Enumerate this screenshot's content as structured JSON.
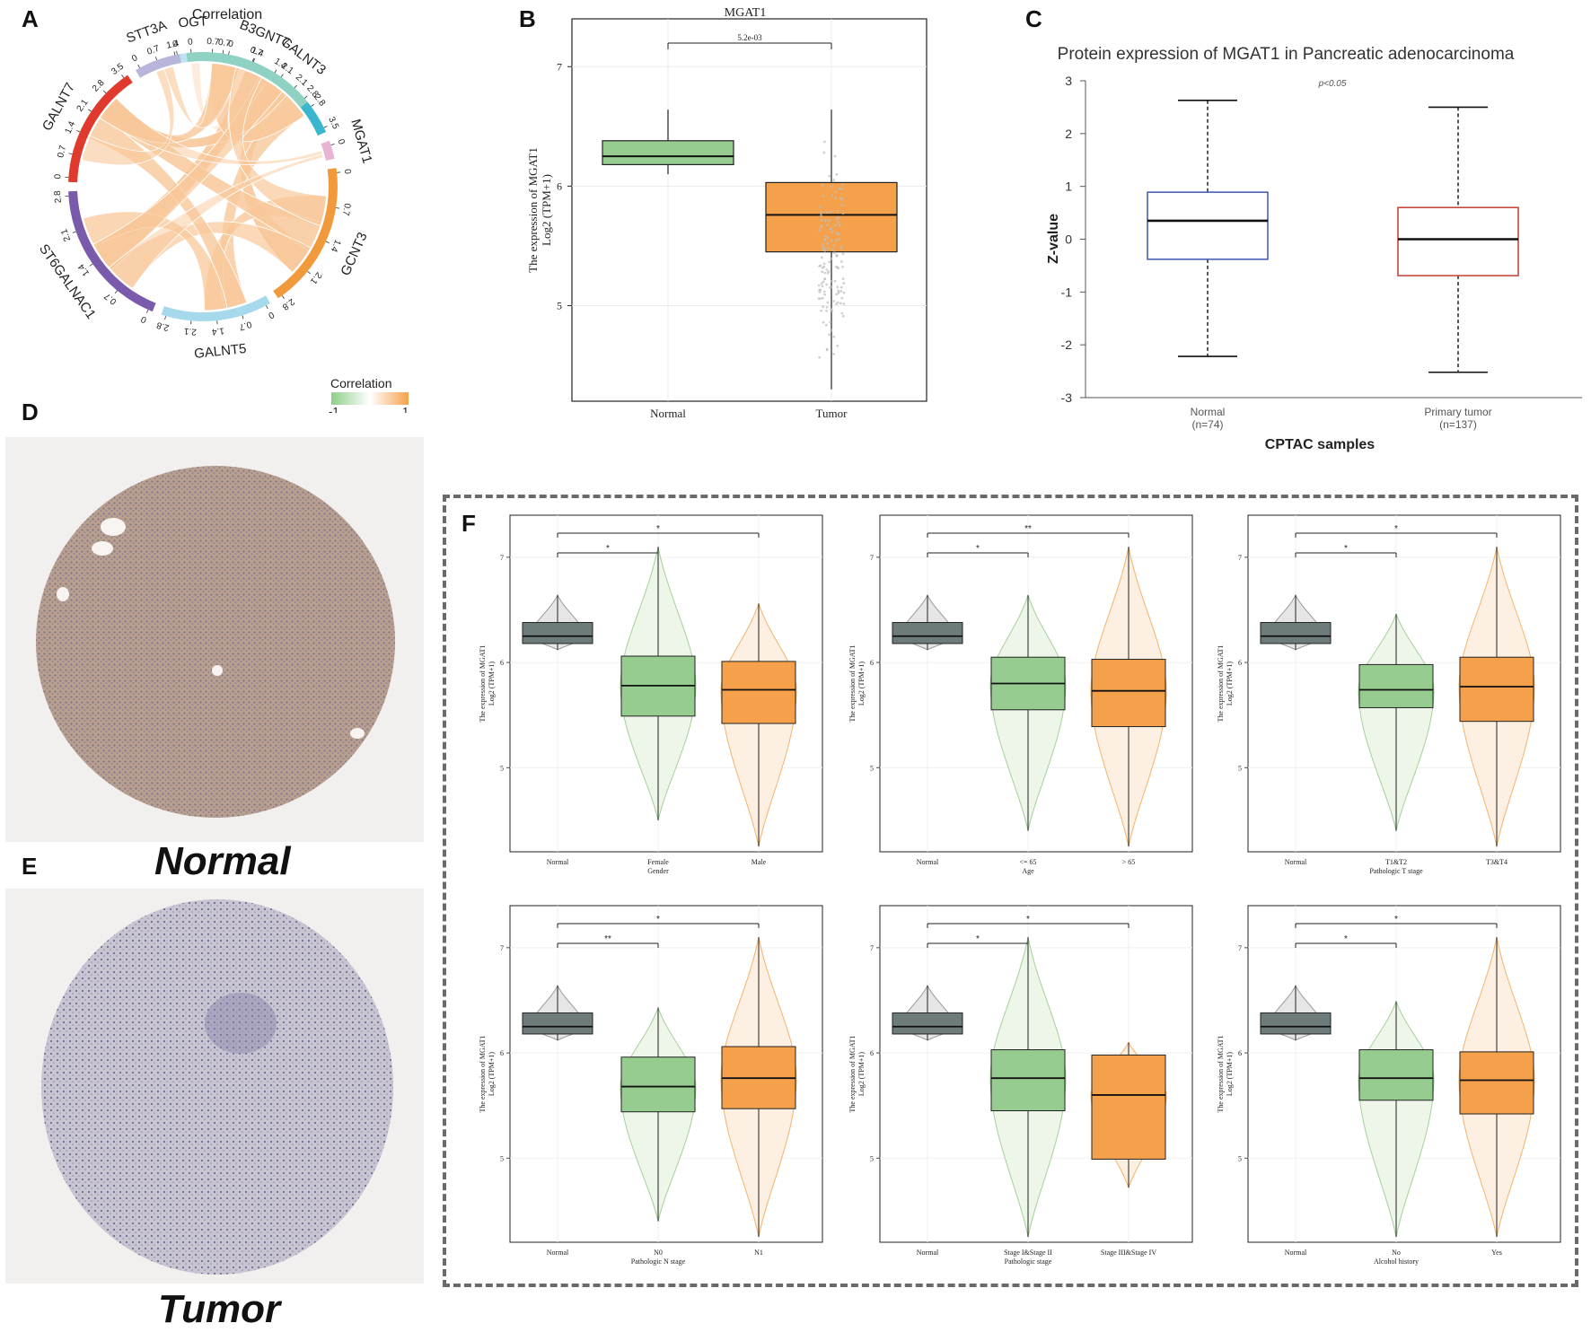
{
  "panels": {
    "A": "A",
    "B": "B",
    "C": "C",
    "D": "D",
    "E": "E",
    "F": "F"
  },
  "colors": {
    "normal_green": "#96cc8f",
    "tumor_orange": "#f5a14b",
    "normal_gray": "#6e7b7b",
    "c_normal_blue": "#4a5fb5",
    "c_tumor_red": "#c8473f",
    "chord": "#f8c89a",
    "frame_dash": "#6a6a6a"
  },
  "panelA": {
    "title": "Correlation",
    "legend_title": "Correlation",
    "legend_min": "-1",
    "legend_max": "1",
    "segments": [
      {
        "name": "OGT",
        "color": "#bfe1f2",
        "ticks": [
          "0",
          "0.7"
        ]
      },
      {
        "name": "GALNT3",
        "color": "#3bb6cf",
        "ticks": [
          "0",
          "0.7",
          "1.4",
          "2.1",
          "2.8",
          "3.5"
        ]
      },
      {
        "name": "MGAT1",
        "color": "#e7b5d3",
        "ticks": [
          "0"
        ]
      },
      {
        "name": "GCNT3",
        "color": "#f19a3c",
        "ticks": [
          "0",
          "0.7",
          "1.4",
          "2.1",
          "2.8"
        ]
      },
      {
        "name": "GALNT5",
        "color": "#a7d9ec",
        "ticks": [
          "0",
          "0.7",
          "1.4",
          "2.1",
          "2.8"
        ]
      },
      {
        "name": "ST6GALNAC1",
        "color": "#7a5bab",
        "ticks": [
          "0",
          "0.7",
          "1.4",
          "2.1",
          "2.8"
        ]
      },
      {
        "name": "GALNT7",
        "color": "#e03a2f",
        "ticks": [
          "0",
          "0.7",
          "1.4",
          "2.1",
          "2.8",
          "3.5"
        ]
      },
      {
        "name": "STT3A",
        "color": "#b7b6da",
        "ticks": [
          "0",
          "0.7",
          "1.4"
        ]
      },
      {
        "name": "B3GNT7",
        "color": "#8fd1c2",
        "ticks": [
          "0",
          "0.7",
          "1.4",
          "2.1",
          "2.8"
        ]
      }
    ]
  },
  "panelB": {
    "title": "MGAT1",
    "ylabel_line1": "The expression  of MGAT1",
    "ylabel_line2": "Log2 (TPM+1)",
    "pvalue": "5.2e-03",
    "yticks": [
      "5",
      "6",
      "7"
    ]
  },
  "panelC": {
    "title": "Protein expression of MGAT1 in Pancreatic adenocarcinoma",
    "pnote": "p<0.05",
    "ylabel": "Z-value",
    "xlabel": "CPTAC samples",
    "yticks": [
      "3",
      "2",
      "1",
      "0",
      "-1",
      "-2",
      "-3"
    ]
  },
  "panelD": {
    "label": "Normal"
  },
  "panelE": {
    "label": "Tumor"
  },
  "panelF": {
    "ylabel_line1": "The expression  of MGAT1",
    "ylabel_line2": "Log2 (TPM+1)",
    "yticks": [
      "5",
      "6",
      "7"
    ],
    "subplots": [
      {
        "xlabel": "Gender",
        "groups": [
          "Normal",
          "Female",
          "Male"
        ],
        "sig_short": "*",
        "sig_long": "*"
      },
      {
        "xlabel": "Age",
        "groups": [
          "Normal",
          "<= 65",
          "> 65"
        ],
        "sig_short": "*",
        "sig_long": "**"
      },
      {
        "xlabel": "Pathologic T stage",
        "groups": [
          "Normal",
          "T1&T2",
          "T3&T4"
        ],
        "sig_short": "*",
        "sig_long": "*"
      },
      {
        "xlabel": "Pathologic N stage",
        "groups": [
          "Normal",
          "N0",
          "N1"
        ],
        "sig_short": "**",
        "sig_long": "*"
      },
      {
        "xlabel": "Pathologic stage",
        "groups": [
          "Normal",
          "Stage I&Stage II",
          "Stage III&Stage IV"
        ],
        "sig_short": "*",
        "sig_long": "*"
      },
      {
        "xlabel": "Alcohol history",
        "groups": [
          "Normal",
          "No",
          "Yes"
        ],
        "sig_short": "*",
        "sig_long": "*"
      }
    ]
  },
  "chart_data": [
    {
      "type": "box",
      "panel": "B",
      "title": "MGAT1",
      "categories": [
        "Normal",
        "Tumor"
      ],
      "ylim": [
        4.2,
        7.4
      ],
      "series": [
        {
          "name": "Normal",
          "min": 6.1,
          "q1": 6.18,
          "median": 6.25,
          "q3": 6.38,
          "max": 6.64
        },
        {
          "name": "Tumor",
          "min": 4.3,
          "q1": 5.45,
          "median": 5.76,
          "q3": 6.03,
          "max": 6.64
        }
      ],
      "annotation": "5.2e-03"
    },
    {
      "type": "box",
      "panel": "C",
      "title": "Protein expression of MGAT1 in Pancreatic adenocarcinoma",
      "categories": [
        "Normal",
        "Primary tumor"
      ],
      "counts": [
        "(n=74)",
        "(n=137)"
      ],
      "ylim": [
        -3,
        3
      ],
      "series": [
        {
          "name": "Normal",
          "min": -2.22,
          "q1": -0.38,
          "median": 0.35,
          "q3": 0.89,
          "max": 2.63
        },
        {
          "name": "Primary tumor",
          "min": -2.52,
          "q1": -0.69,
          "median": 0.0,
          "q3": 0.6,
          "max": 2.5
        }
      ],
      "xlabel": "CPTAC samples",
      "ylabel": "Z-value"
    },
    {
      "type": "violin",
      "panel": "F",
      "ylim": [
        4.2,
        7.4
      ],
      "subplots": [
        {
          "xlabel": "Gender",
          "series": [
            {
              "name": "Normal",
              "min": 6.12,
              "q1": 6.18,
              "median": 6.25,
              "q3": 6.38,
              "max": 6.64
            },
            {
              "name": "Female",
              "min": 4.5,
              "q1": 5.49,
              "median": 5.78,
              "q3": 6.06,
              "max": 7.1
            },
            {
              "name": "Male",
              "min": 4.25,
              "q1": 5.42,
              "median": 5.74,
              "q3": 6.01,
              "max": 6.56
            }
          ]
        },
        {
          "xlabel": "Age",
          "series": [
            {
              "name": "Normal",
              "min": 6.12,
              "q1": 6.18,
              "median": 6.25,
              "q3": 6.38,
              "max": 6.64
            },
            {
              "name": "<= 65",
              "min": 4.4,
              "q1": 5.55,
              "median": 5.8,
              "q3": 6.05,
              "max": 6.64
            },
            {
              "name": "> 65",
              "min": 4.25,
              "q1": 5.39,
              "median": 5.73,
              "q3": 6.03,
              "max": 7.1
            }
          ]
        },
        {
          "xlabel": "Pathologic T stage",
          "series": [
            {
              "name": "Normal",
              "min": 6.12,
              "q1": 6.18,
              "median": 6.25,
              "q3": 6.38,
              "max": 6.64
            },
            {
              "name": "T1&T2",
              "min": 4.4,
              "q1": 5.57,
              "median": 5.74,
              "q3": 5.98,
              "max": 6.46
            },
            {
              "name": "T3&T4",
              "min": 4.25,
              "q1": 5.44,
              "median": 5.77,
              "q3": 6.05,
              "max": 7.1
            }
          ]
        },
        {
          "xlabel": "Pathologic N stage",
          "series": [
            {
              "name": "Normal",
              "min": 6.12,
              "q1": 6.18,
              "median": 6.25,
              "q3": 6.38,
              "max": 6.64
            },
            {
              "name": "N0",
              "min": 4.4,
              "q1": 5.44,
              "median": 5.68,
              "q3": 5.96,
              "max": 6.43
            },
            {
              "name": "N1",
              "min": 4.25,
              "q1": 5.47,
              "median": 5.76,
              "q3": 6.06,
              "max": 7.1
            }
          ]
        },
        {
          "xlabel": "Pathologic stage",
          "series": [
            {
              "name": "Normal",
              "min": 6.12,
              "q1": 6.18,
              "median": 6.25,
              "q3": 6.38,
              "max": 6.64
            },
            {
              "name": "Stage I&Stage II",
              "min": 4.25,
              "q1": 5.45,
              "median": 5.76,
              "q3": 6.03,
              "max": 7.1
            },
            {
              "name": "Stage III&Stage IV",
              "min": 4.72,
              "q1": 4.99,
              "median": 5.6,
              "q3": 5.98,
              "max": 6.1
            }
          ]
        },
        {
          "xlabel": "Alcohol history",
          "series": [
            {
              "name": "Normal",
              "min": 6.12,
              "q1": 6.18,
              "median": 6.25,
              "q3": 6.38,
              "max": 6.64
            },
            {
              "name": "No",
              "min": 4.25,
              "q1": 5.55,
              "median": 5.76,
              "q3": 6.03,
              "max": 6.49
            },
            {
              "name": "Yes",
              "min": 4.25,
              "q1": 5.42,
              "median": 5.74,
              "q3": 6.01,
              "max": 7.1
            }
          ]
        }
      ]
    }
  ]
}
